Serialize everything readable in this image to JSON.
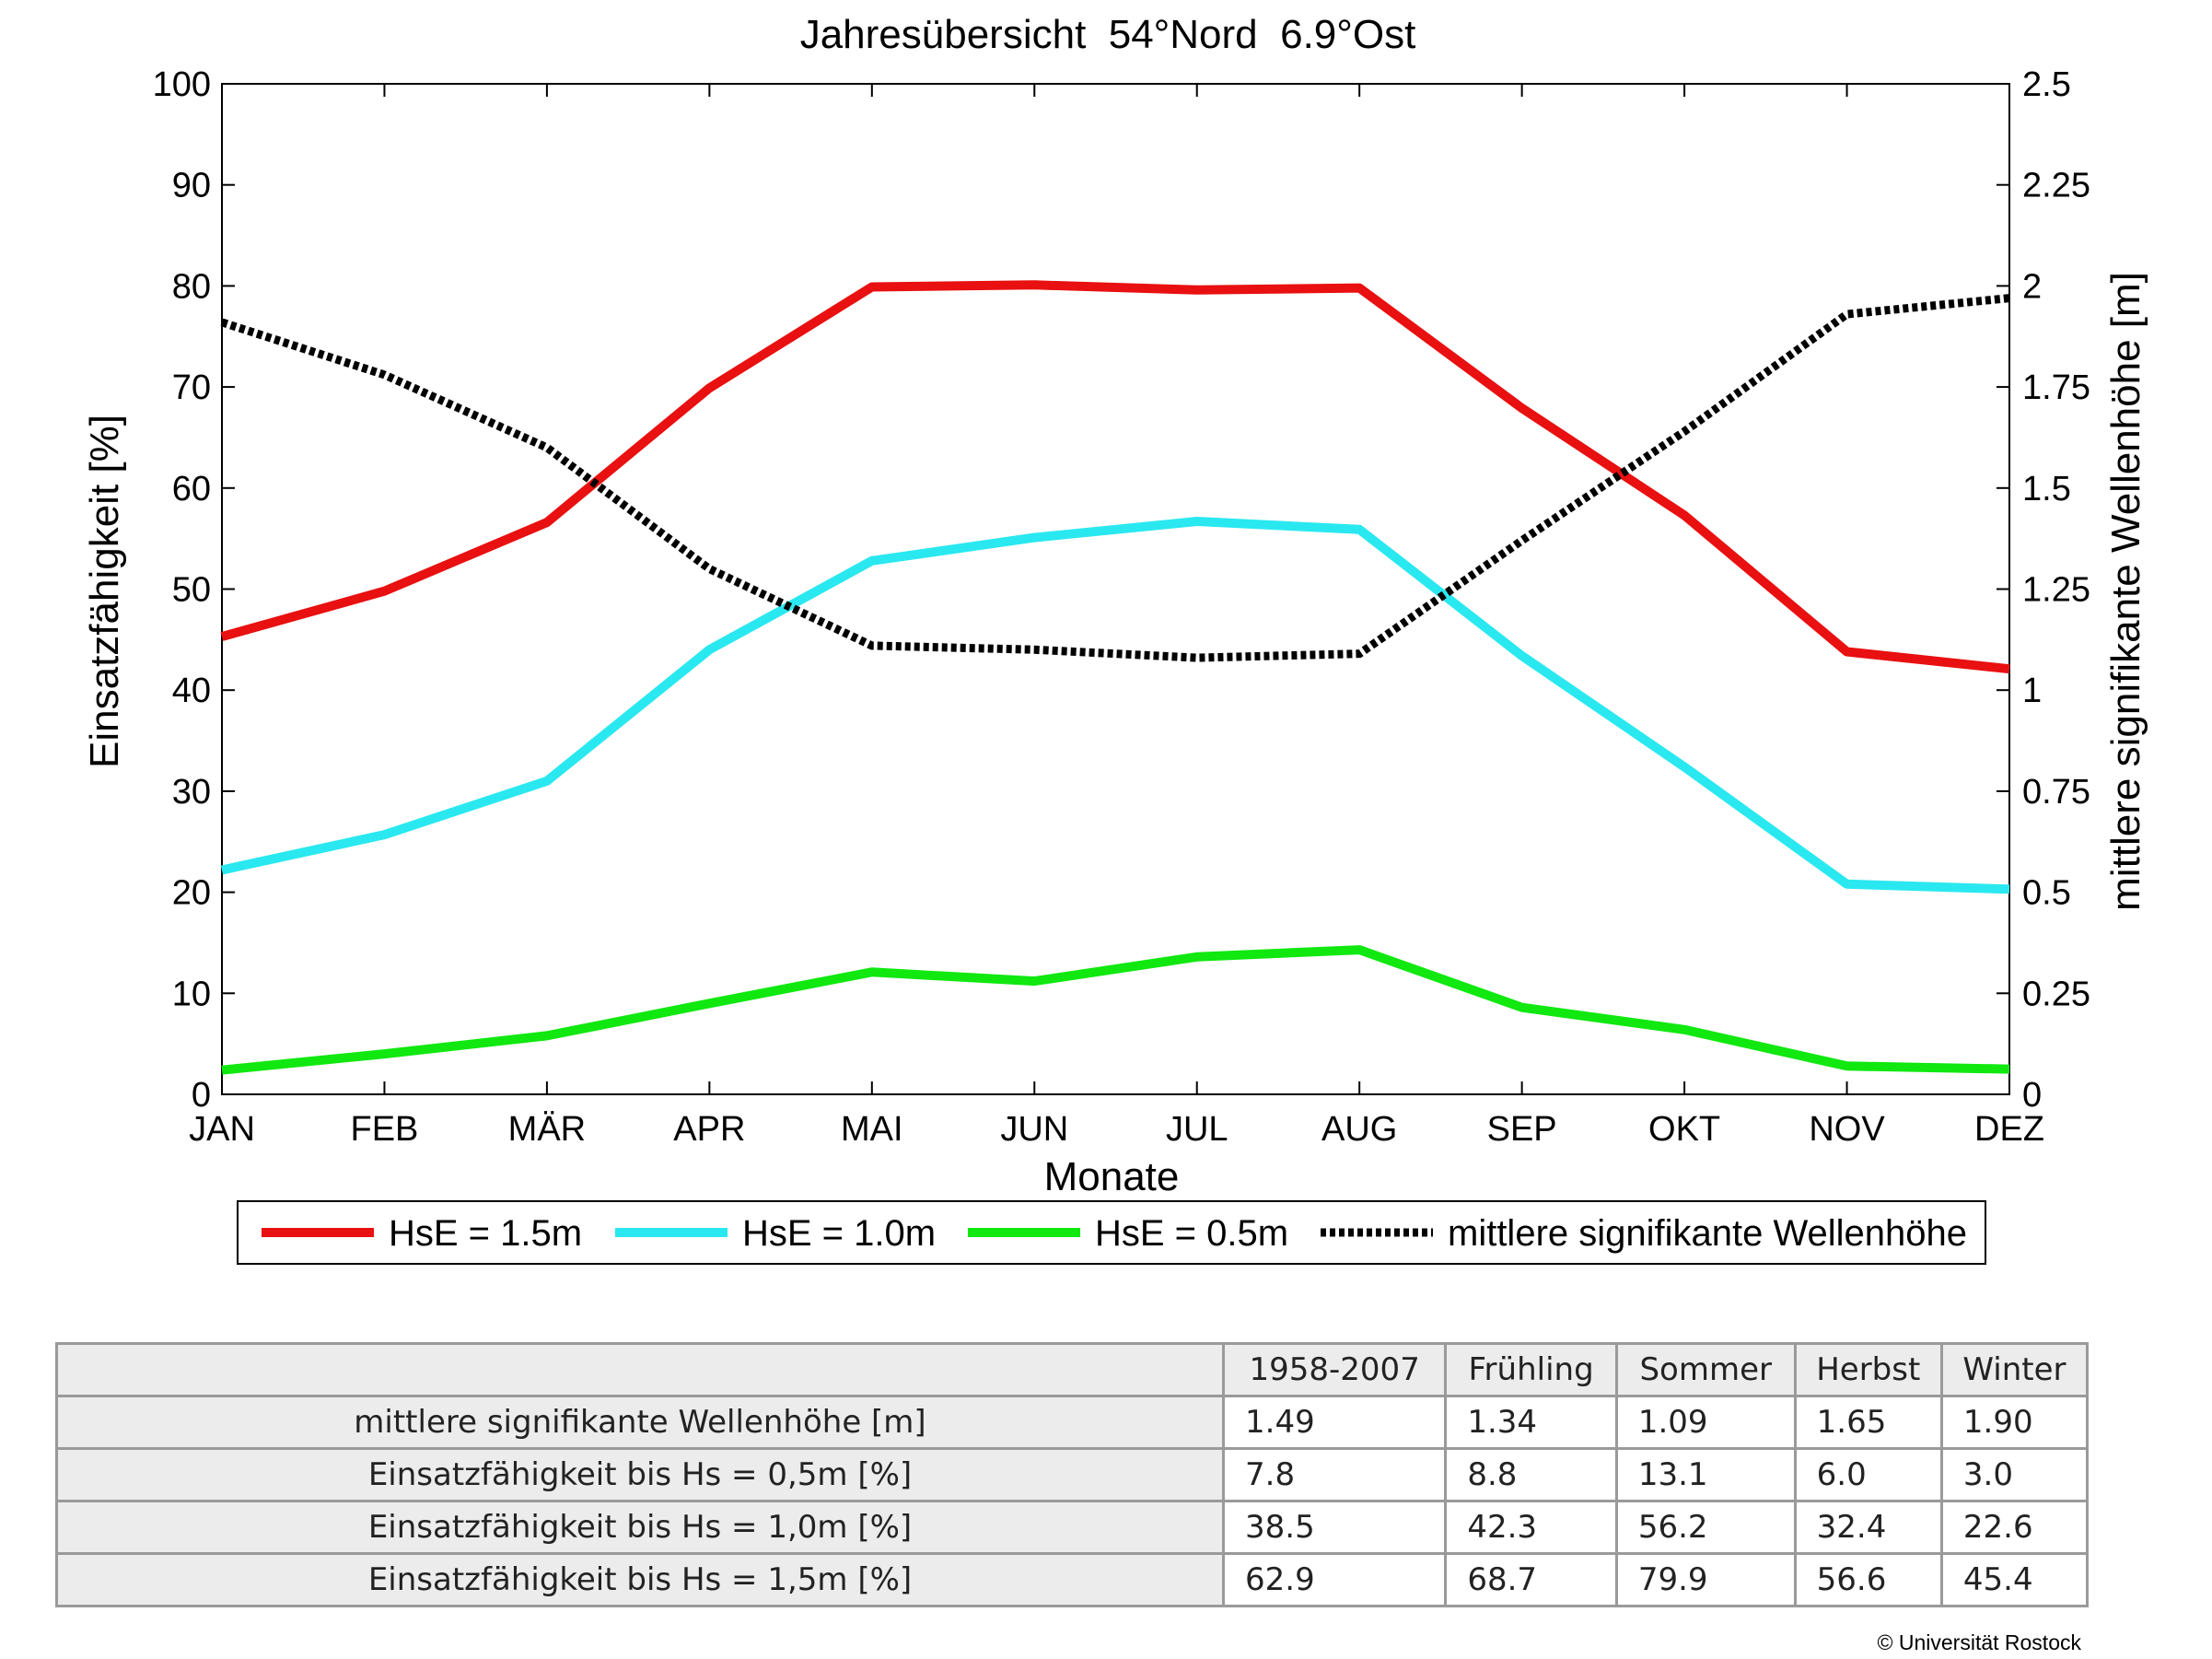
{
  "chart_data": {
    "type": "line",
    "title": "Jahresübersicht  54°Nord  6.9°Ost",
    "xlabel": "Monate",
    "ylabel": "Einsatzfähigkeit [%]",
    "y2label": "mittlere signifikante Wellenhöhe [m]",
    "categories": [
      "JAN",
      "FEB",
      "MÄR",
      "APR",
      "MAI",
      "JUN",
      "JUL",
      "AUG",
      "SEP",
      "OKT",
      "NOV",
      "DEZ"
    ],
    "ylim": [
      0,
      100
    ],
    "yticks": [
      "0",
      "10",
      "20",
      "30",
      "40",
      "50",
      "60",
      "70",
      "80",
      "90",
      "100"
    ],
    "y2lim": [
      0,
      2.5
    ],
    "y2ticks": [
      "0",
      "0.25",
      "0.5",
      "0.75",
      "1",
      "1.25",
      "1.5",
      "1.75",
      "2",
      "2.25",
      "2.5"
    ],
    "grid": false,
    "legend_position": "bottom",
    "series": [
      {
        "name": "HsE = 1.5m",
        "axis": "left",
        "color": "#e81010",
        "style": "solid",
        "values": [
          45.3,
          49.8,
          56.6,
          69.9,
          79.9,
          80.1,
          79.6,
          79.8,
          67.9,
          57.3,
          43.8,
          42.1
        ]
      },
      {
        "name": "HsE = 1.0m",
        "axis": "left",
        "color": "#2ae8f0",
        "style": "solid",
        "values": [
          22.2,
          25.7,
          31.0,
          44.0,
          52.8,
          55.1,
          56.7,
          55.9,
          43.4,
          32.4,
          20.8,
          20.3
        ]
      },
      {
        "name": "HsE = 0.5m",
        "axis": "left",
        "color": "#10e810",
        "style": "solid",
        "values": [
          2.4,
          4.0,
          5.8,
          9.0,
          12.1,
          11.2,
          13.6,
          14.3,
          8.6,
          6.4,
          2.8,
          2.5
        ]
      },
      {
        "name": "mittlere signifikante Wellenhöhe",
        "axis": "right",
        "color": "#000000",
        "style": "dotted",
        "values": [
          1.91,
          1.78,
          1.6,
          1.3,
          1.11,
          1.1,
          1.08,
          1.09,
          1.37,
          1.64,
          1.93,
          1.97
        ]
      }
    ]
  },
  "summary_table": {
    "columns": [
      "1958-2007",
      "Frühling",
      "Sommer",
      "Herbst",
      "Winter"
    ],
    "rows": [
      {
        "label": "mittlere signifikante Wellenhöhe [m]",
        "values": [
          "1.49",
          "1.34",
          "1.09",
          "1.65",
          "1.90"
        ]
      },
      {
        "label": "Einsatzfähigkeit bis Hs = 0,5m [%]",
        "values": [
          "7.8",
          "8.8",
          "13.1",
          "6.0",
          "3.0"
        ]
      },
      {
        "label": "Einsatzfähigkeit bis Hs = 1,0m [%]",
        "values": [
          "38.5",
          "42.3",
          "56.2",
          "32.4",
          "22.6"
        ]
      },
      {
        "label": "Einsatzfähigkeit bis Hs = 1,5m [%]",
        "values": [
          "62.9",
          "68.7",
          "79.9",
          "56.6",
          "45.4"
        ]
      }
    ]
  },
  "copyright": "© Universität Rostock"
}
